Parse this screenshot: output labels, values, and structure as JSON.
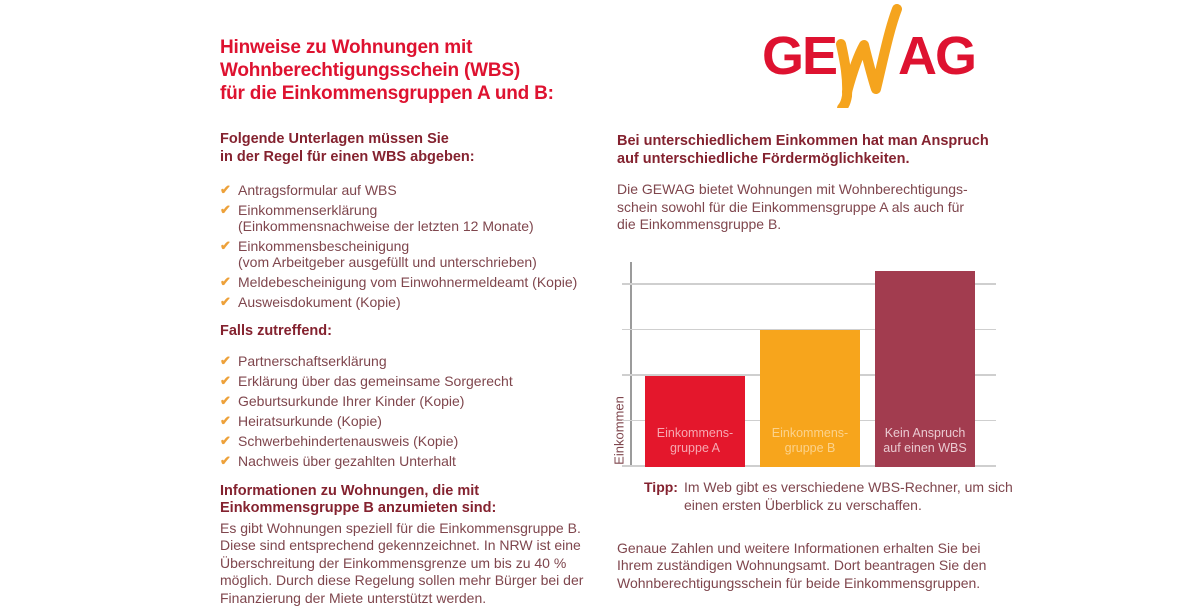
{
  "colors": {
    "red": "#DE1230",
    "orange_check": "#EDA13A",
    "heading_maroon": "#84222F",
    "body_maroon": "#7F464D",
    "bar_red": "#E4172C",
    "bar_orange": "#F7A51C",
    "bar_maroon": "#A23C4F",
    "grid_gray": "#CFCFCF",
    "axis_gray": "#9B9B9B"
  },
  "icons": {
    "check": "✔"
  },
  "logo": {
    "left": "GE",
    "right": "AG",
    "name": "GEWAG"
  },
  "left": {
    "title": "Hinweise zu Wohnungen mit\nWohnberechtigungsschein (WBS)\nfür die Einkommensgruppen A und B:",
    "section1_heading": "Folgende Unterlagen müssen Sie\nin der Regel für einen WBS abgeben:",
    "checklist1": [
      "Antragsformular auf WBS",
      "Einkommenserklärung\n(Einkommensnachweise der letzten 12 Monate)",
      "Einkommensbescheinigung\n(vom Arbeitgeber ausgefüllt und unterschrieben)",
      "Meldebescheinigung vom Einwohnermeldeamt (Kopie)",
      "Ausweisdokument (Kopie)"
    ],
    "section2_heading": "Falls zutreffend:",
    "checklist2": [
      "Partnerschaftserklärung",
      "Erklärung über das gemeinsame Sorgerecht",
      "Geburtsurkunde Ihrer Kinder (Kopie)",
      "Heiratsurkunde (Kopie)",
      "Schwerbehindertenausweis (Kopie)",
      "Nachweis über gezahlten Unterhalt"
    ],
    "section3_heading": "Informationen zu Wohnungen, die mit\nEinkommensgruppe B anzumieten sind:",
    "section3_text": "Es gibt Wohnungen speziell für die Einkommensgruppe B.\nDiese sind entsprechend gekennzeichnet. In NRW ist eine\nÜberschreitung der Einkommensgrenze um bis zu 40 %\nmöglich. Durch diese Regelung sollen mehr Bürger bei der\nFinanzierung der Miete unterstützt werden."
  },
  "right": {
    "heading": "Bei unterschiedlichem Einkommen hat man Anspruch\nauf unterschiedliche Fördermöglichkeiten.",
    "intro_text": "Die GEWAG bietet Wohnungen mit Wohnberechtigungs-\nschein sowohl für die Einkommensgruppe A als auch für\ndie Einkommensgruppe B.",
    "tip_label": "Tipp:",
    "tip_text": "Im Web gibt es verschiedene WBS-Rechner, um sich\neinen ersten Überblick zu verschaffen.",
    "outro_text": "Genaue Zahlen und weitere Informationen erhalten Sie bei\nIhrem zuständigen Wohnungsamt. Dort beantragen Sie den\nWohnberechtigungsschein für beide Einkommensgruppen."
  },
  "chart_data": {
    "type": "bar",
    "title": "",
    "xlabel": "",
    "ylabel": "Einkommen",
    "categories": [
      "Einkommensgruppe A",
      "Einkommensgruppe B",
      "Kein Anspruch auf einen WBS"
    ],
    "values": [
      2,
      3,
      4.3
    ],
    "ylim": [
      0,
      4.5
    ],
    "gridline_step": 1,
    "gridlines": true,
    "legend_position": "none",
    "bars": [
      {
        "label": "Einkommens-\ngruppe A",
        "value": 2,
        "color": "#E4172C",
        "label_color": "#F6A8B1"
      },
      {
        "label": "Einkommens-\ngruppe B",
        "value": 3,
        "color": "#F7A51C",
        "label_color": "#FBD28C"
      },
      {
        "label": "Kein Anspruch\nauf einen WBS",
        "value": 4.3,
        "color": "#A23C4F",
        "label_color": "#EACAD1"
      }
    ]
  }
}
